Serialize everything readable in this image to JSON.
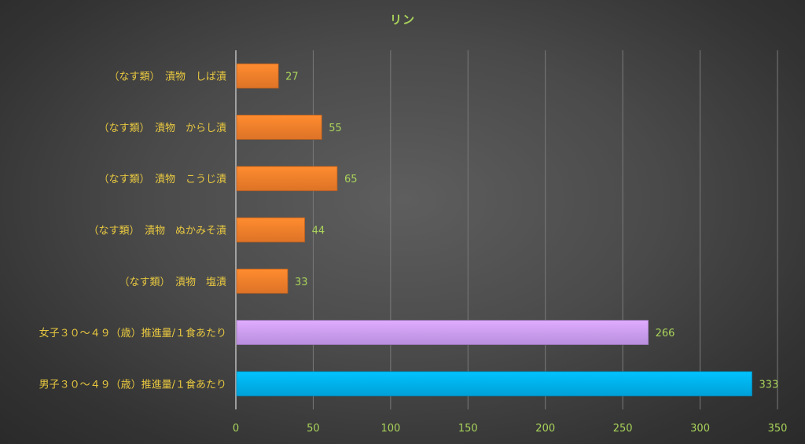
{
  "chart_data": {
    "type": "bar",
    "orientation": "horizontal",
    "title": "リン",
    "categories": [
      "（なす類）　漬物　しば漬",
      "（なす類）　漬物　からし漬",
      "（なす類）　漬物　こうじ漬",
      "（なす類）　漬物　ぬかみそ漬",
      "（なす類）　漬物　塩漬",
      "女子３０～４９（歳）推進量/１食あたり",
      "男子３０～４９（歳）推進量/１食あたり"
    ],
    "values": [
      27,
      55,
      65,
      44,
      33,
      266,
      333
    ],
    "bar_colors": [
      "#f07d2a",
      "#f07d2a",
      "#f07d2a",
      "#f07d2a",
      "#f07d2a",
      "#c89af0",
      "#00aeea"
    ],
    "xlim": [
      0,
      350
    ],
    "x_ticks": [
      0,
      50,
      100,
      150,
      200,
      250,
      300,
      350
    ],
    "xlabel": "",
    "ylabel": "",
    "grid": true,
    "legend": "none",
    "colors": {
      "title": "#a9d45a",
      "category_text": "#e8c840",
      "value_text": "#a9d45a",
      "tick_text": "#a9d45a",
      "gridline": "#7a7a7a",
      "axis": "#bdbdbd"
    }
  }
}
